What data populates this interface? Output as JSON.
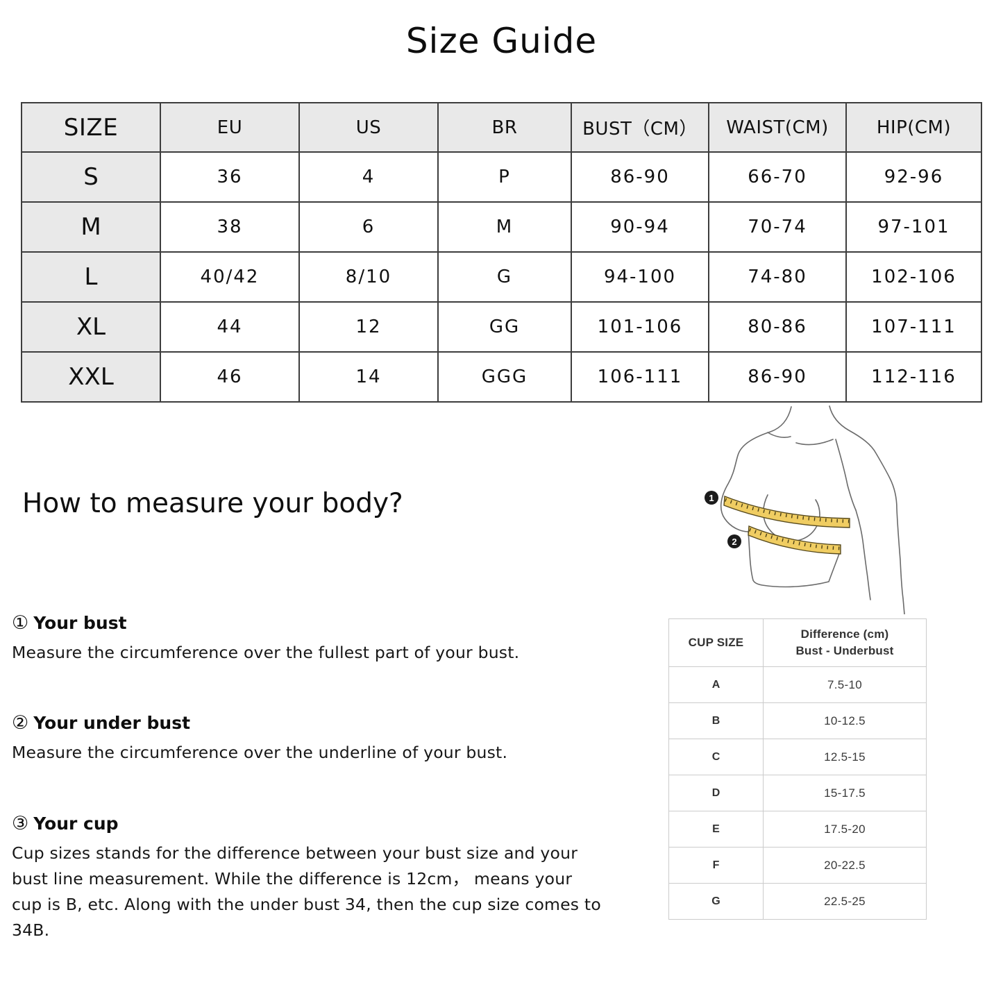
{
  "page": {
    "title": "Size Guide"
  },
  "size_table": {
    "headers": [
      "SIZE",
      "EU",
      "US",
      "BR",
      "BUST（CM）",
      "WAIST(CM)",
      "HIP(CM)"
    ],
    "rows": [
      [
        "S",
        "36",
        "4",
        "P",
        "86-90",
        "66-70",
        "92-96"
      ],
      [
        "M",
        "38",
        "6",
        "M",
        "90-94",
        "70-74",
        "97-101"
      ],
      [
        "L",
        "40/42",
        "8/10",
        "G",
        "94-100",
        "74-80",
        "102-106"
      ],
      [
        "XL",
        "44",
        "12",
        "GG",
        "101-106",
        "80-86",
        "107-111"
      ],
      [
        "XXL",
        "46",
        "14",
        "GGG",
        "106-111",
        "86-90",
        "112-116"
      ]
    ]
  },
  "measure": {
    "heading": "How to measure your body?",
    "steps": [
      {
        "num": "①",
        "title": "Your bust",
        "desc": "Measure the circumference over the fullest part of your bust."
      },
      {
        "num": "②",
        "title": "Your under bust",
        "desc": "Measure the circumference over the underline of your bust."
      },
      {
        "num": "③",
        "title": "Your cup",
        "desc": "Cup sizes stands for the difference between your bust size and your\nbust line measurement. While the difference is 12cm， means your\ncup is B, etc. Along with the under bust 34, then the cup size comes to 34B."
      }
    ]
  },
  "cup_table": {
    "headers": [
      "CUP SIZE",
      "Difference (cm)\nBust - Underbust"
    ],
    "rows": [
      [
        "A",
        "7.5-10"
      ],
      [
        "B",
        "10-12.5"
      ],
      [
        "C",
        "12.5-15"
      ],
      [
        "D",
        "15-17.5"
      ],
      [
        "E",
        "17.5-20"
      ],
      [
        "F",
        "20-22.5"
      ],
      [
        "G",
        "22.5-25"
      ]
    ]
  },
  "illustration": {
    "badges": [
      {
        "label": "1"
      },
      {
        "label": "2"
      }
    ],
    "tape_color": "#f0cd62",
    "tape_edge_color": "#55481c",
    "line_color": "#6a6a6a",
    "badge_color": "#1b1b1b",
    "table_header_bg": "#e9e9e9",
    "table_border_color": "#3d3d3d"
  }
}
